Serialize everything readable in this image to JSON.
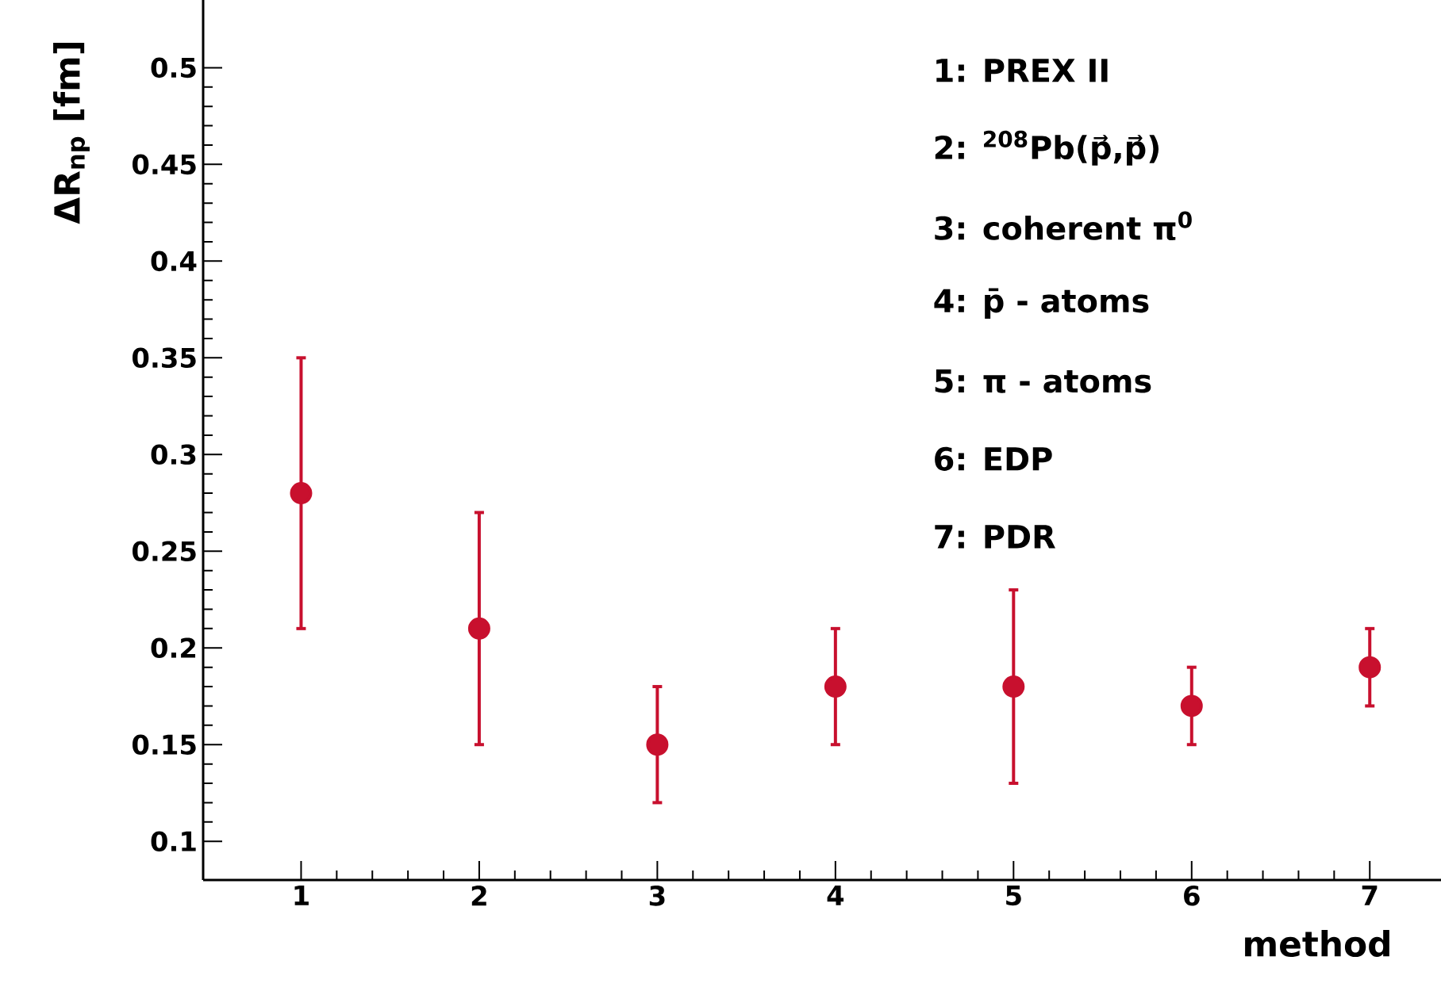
{
  "chart_data": {
    "type": "scatter",
    "xlabel": "method",
    "ylabel": "ΔR$_{np}$ [fm]",
    "x": [
      1,
      2,
      3,
      4,
      5,
      6,
      7
    ],
    "values": [
      0.28,
      0.21,
      0.15,
      0.18,
      0.18,
      0.17,
      0.19
    ],
    "errors": [
      0.07,
      0.06,
      0.03,
      0.03,
      0.05,
      0.02,
      0.02
    ],
    "color": "#c8102e",
    "marker": "circle",
    "xlim": [
      0.45,
      7.4
    ],
    "ylim": [
      0.08,
      0.535
    ],
    "xticks": [
      1,
      2,
      3,
      4,
      5,
      6,
      7
    ],
    "yticks": [
      0.1,
      0.15,
      0.2,
      0.25,
      0.3,
      0.35,
      0.4,
      0.45,
      0.5
    ],
    "annotations": [
      "1: PREX II",
      "2: $^{208}$Pb(p⃗,p⃗)",
      "3: coherent π$^{0}$",
      "4: p̄ - atoms",
      "5: π - atoms",
      "6: EDP",
      "7: PDR"
    ],
    "grid": false
  }
}
